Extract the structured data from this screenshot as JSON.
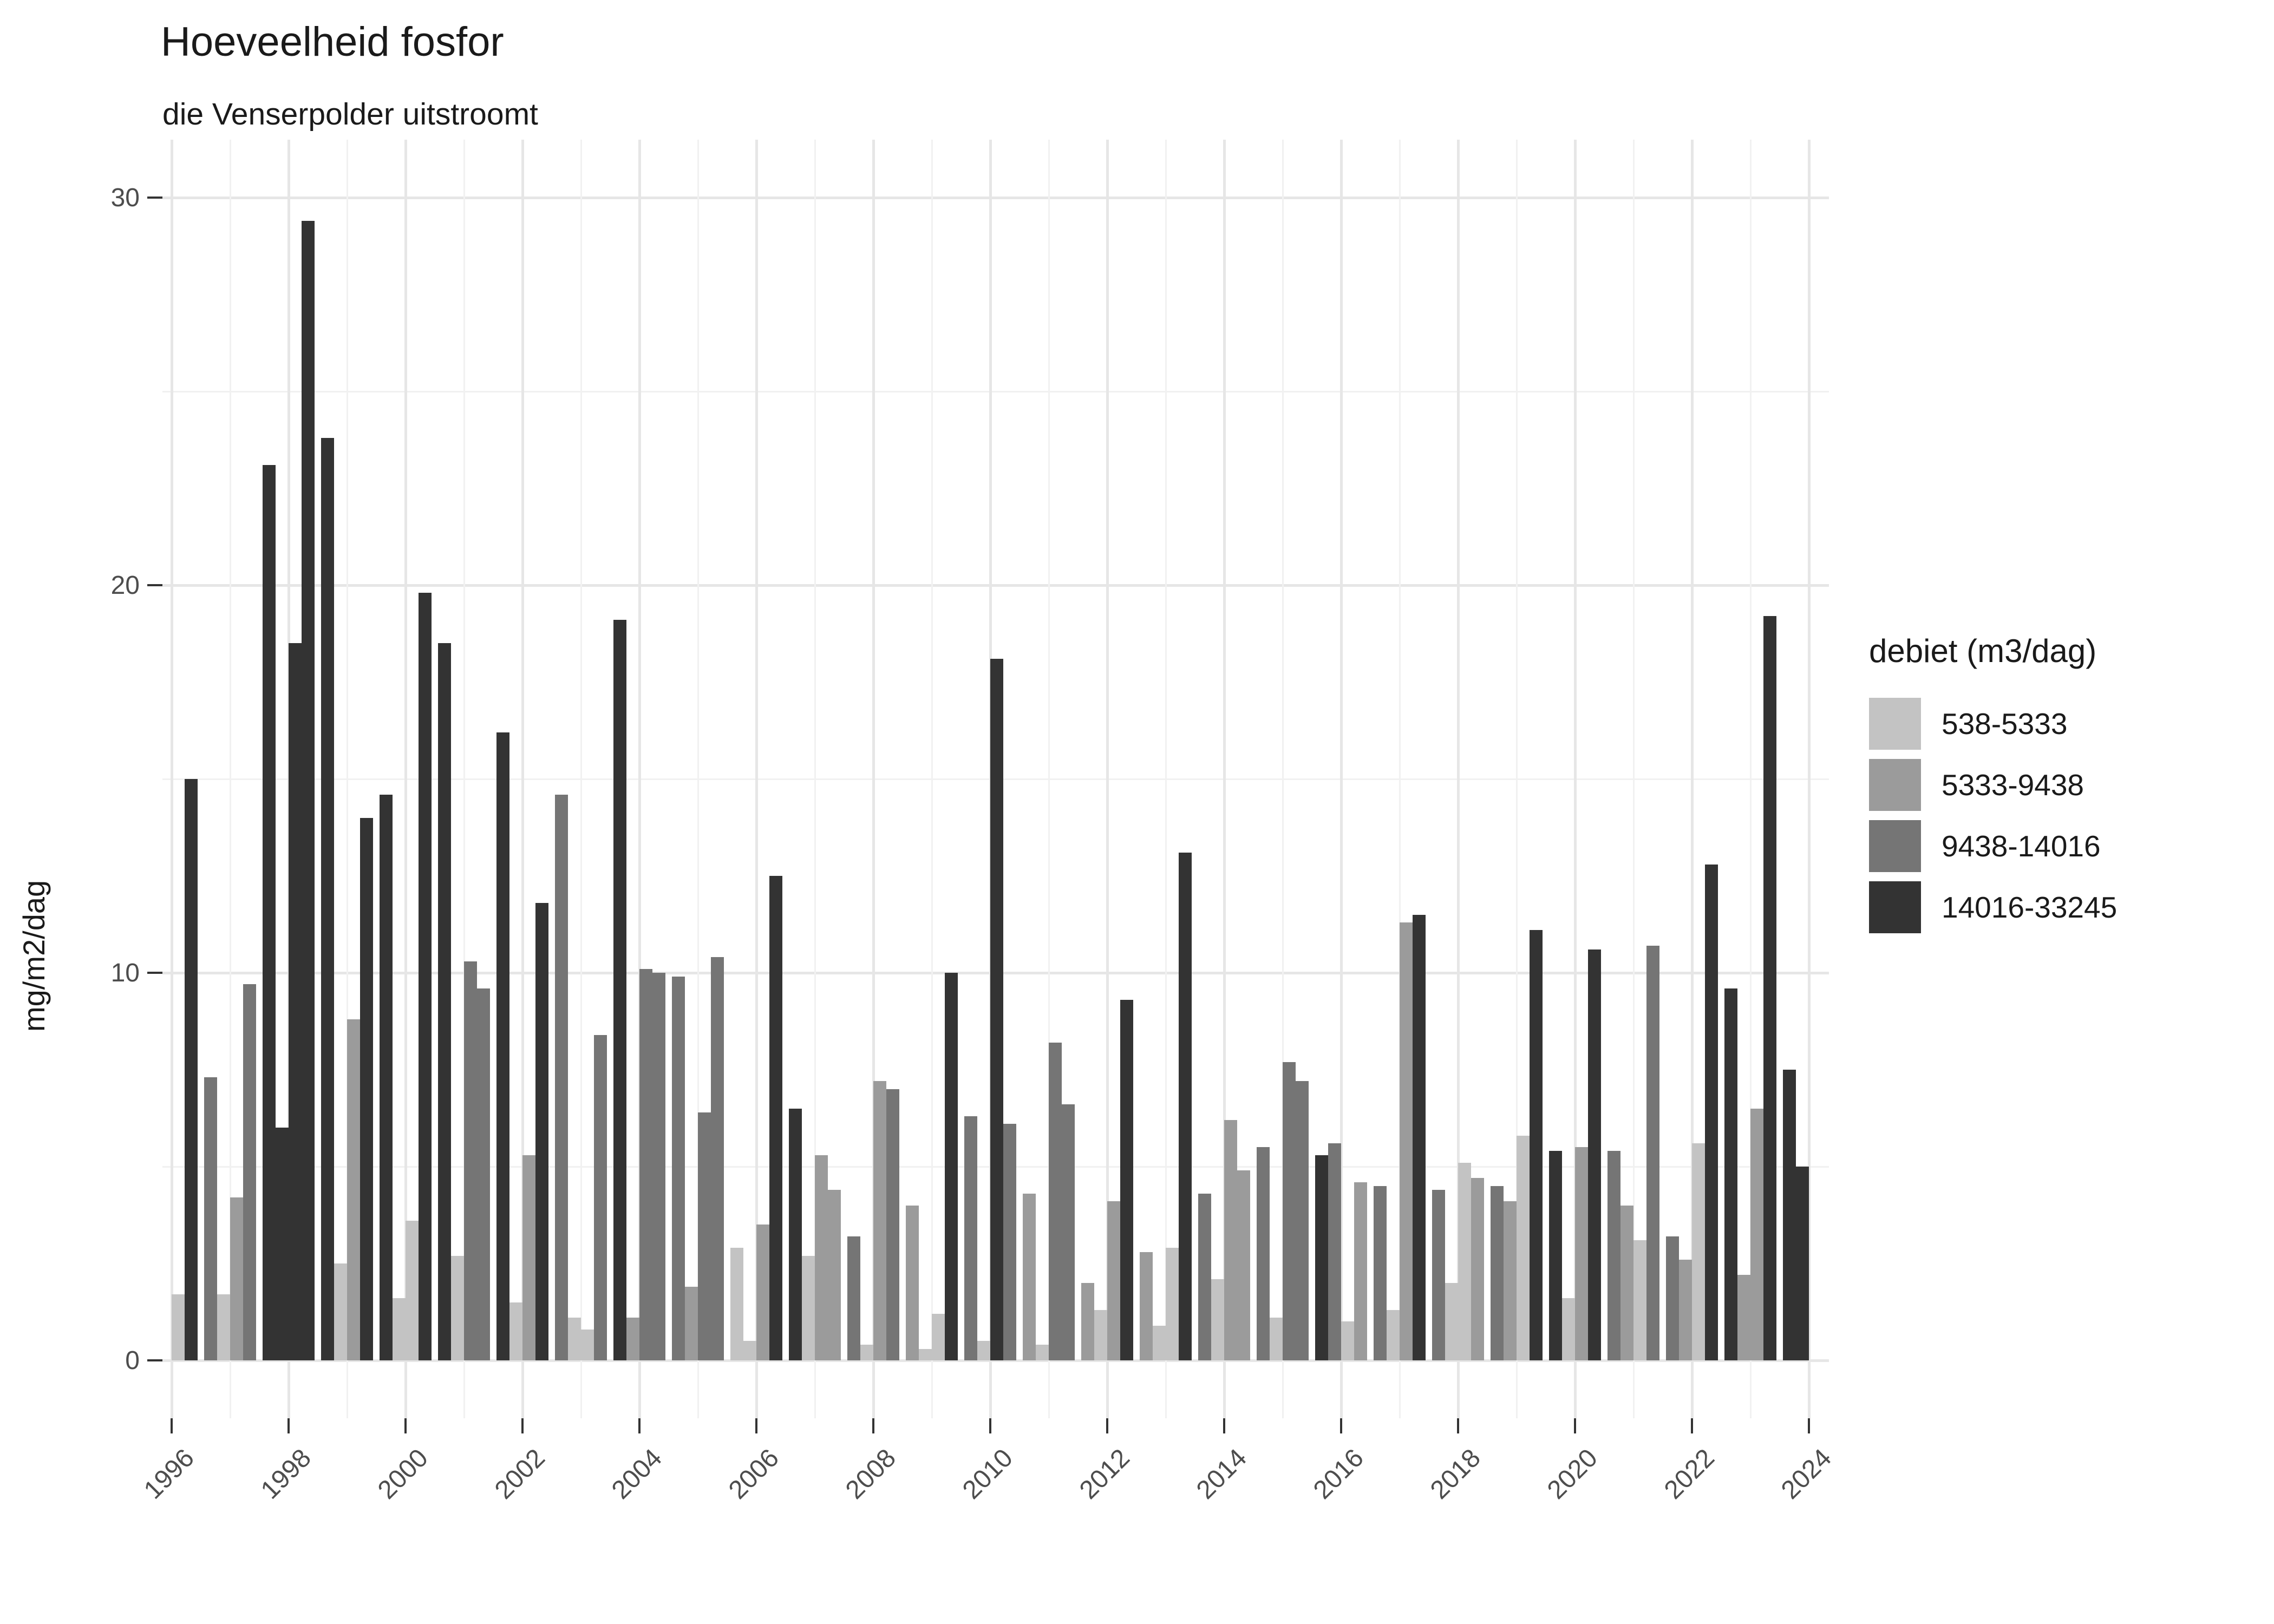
{
  "header": {
    "title": "Hoeveelheid fosfor",
    "subtitle": "die Venserpolder uitstroomt"
  },
  "chart_data": {
    "type": "bar",
    "title": "Hoeveelheid fosfor",
    "subtitle": "die Venserpolder uitstroomt",
    "xlabel": "",
    "ylabel": "mg/m2/dag",
    "ylim": [
      0,
      30
    ],
    "y_ticks": [
      0,
      10,
      20,
      30
    ],
    "y_minor_ticks": [
      5,
      15,
      25
    ],
    "x_tick_years": [
      1996,
      1998,
      2000,
      2002,
      2004,
      2006,
      2008,
      2010,
      2012,
      2014,
      2016,
      2018,
      2020,
      2022,
      2024
    ],
    "grid": "on",
    "legend_position": "right",
    "legend_title": "debiet (m3/dag)",
    "categories": [
      "538-5333",
      "5333-9438",
      "9438-14016",
      "14016-33245"
    ],
    "category_colors": [
      "#c3c3c3",
      "#9b9b9b",
      "#757575",
      "#333333"
    ],
    "bar_unit": "year-quarter",
    "bars": [
      [
        1996,
        3,
        1.7,
        0
      ],
      [
        1996,
        4,
        15.0,
        3
      ],
      [
        1997,
        1,
        7.3,
        2
      ],
      [
        1997,
        2,
        1.7,
        0
      ],
      [
        1997,
        3,
        4.2,
        1
      ],
      [
        1997,
        4,
        9.7,
        2
      ],
      [
        1998,
        1,
        23.1,
        3
      ],
      [
        1998,
        2,
        6.0,
        3
      ],
      [
        1998,
        3,
        18.5,
        3
      ],
      [
        1998,
        4,
        29.4,
        3
      ],
      [
        1999,
        1,
        23.8,
        3
      ],
      [
        1999,
        2,
        2.5,
        0
      ],
      [
        1999,
        3,
        8.8,
        1
      ],
      [
        1999,
        4,
        14.0,
        3
      ],
      [
        2000,
        1,
        14.6,
        3
      ],
      [
        2000,
        2,
        1.6,
        0
      ],
      [
        2000,
        3,
        3.6,
        0
      ],
      [
        2000,
        4,
        19.8,
        3
      ],
      [
        2001,
        1,
        18.5,
        3
      ],
      [
        2001,
        2,
        2.7,
        0
      ],
      [
        2001,
        3,
        10.3,
        2
      ],
      [
        2001,
        4,
        9.6,
        2
      ],
      [
        2002,
        1,
        16.2,
        3
      ],
      [
        2002,
        2,
        1.5,
        0
      ],
      [
        2002,
        3,
        5.3,
        1
      ],
      [
        2002,
        4,
        11.8,
        3
      ],
      [
        2003,
        1,
        14.6,
        2
      ],
      [
        2003,
        2,
        1.1,
        0
      ],
      [
        2003,
        3,
        0.8,
        0
      ],
      [
        2003,
        4,
        8.4,
        2
      ],
      [
        2004,
        1,
        19.1,
        3
      ],
      [
        2004,
        2,
        1.1,
        1
      ],
      [
        2004,
        3,
        10.1,
        2
      ],
      [
        2004,
        4,
        10.0,
        2
      ],
      [
        2005,
        1,
        9.9,
        2
      ],
      [
        2005,
        2,
        1.9,
        1
      ],
      [
        2005,
        3,
        6.4,
        2
      ],
      [
        2005,
        4,
        10.4,
        2
      ],
      [
        2006,
        1,
        2.9,
        0
      ],
      [
        2006,
        2,
        0.5,
        0
      ],
      [
        2006,
        3,
        3.5,
        1
      ],
      [
        2006,
        4,
        12.5,
        3
      ],
      [
        2007,
        1,
        6.5,
        3
      ],
      [
        2007,
        2,
        2.7,
        0
      ],
      [
        2007,
        3,
        5.3,
        1
      ],
      [
        2007,
        4,
        4.4,
        1
      ],
      [
        2008,
        1,
        3.2,
        2
      ],
      [
        2008,
        2,
        0.4,
        0
      ],
      [
        2008,
        3,
        7.2,
        1
      ],
      [
        2008,
        4,
        7.0,
        2
      ],
      [
        2009,
        1,
        4.0,
        1
      ],
      [
        2009,
        2,
        0.3,
        0
      ],
      [
        2009,
        3,
        1.2,
        0
      ],
      [
        2009,
        4,
        10.0,
        3
      ],
      [
        2010,
        1,
        6.3,
        2
      ],
      [
        2010,
        2,
        0.5,
        0
      ],
      [
        2010,
        3,
        18.1,
        3
      ],
      [
        2010,
        4,
        6.1,
        2
      ],
      [
        2011,
        1,
        4.3,
        1
      ],
      [
        2011,
        2,
        0.4,
        0
      ],
      [
        2011,
        3,
        8.2,
        2
      ],
      [
        2011,
        4,
        6.6,
        2
      ],
      [
        2012,
        1,
        2.0,
        1
      ],
      [
        2012,
        2,
        1.3,
        0
      ],
      [
        2012,
        3,
        4.1,
        1
      ],
      [
        2012,
        4,
        9.3,
        3
      ],
      [
        2013,
        1,
        2.8,
        1
      ],
      [
        2013,
        2,
        0.9,
        0
      ],
      [
        2013,
        3,
        2.9,
        0
      ],
      [
        2013,
        4,
        13.1,
        3
      ],
      [
        2014,
        1,
        4.3,
        2
      ],
      [
        2014,
        2,
        2.1,
        0
      ],
      [
        2014,
        3,
        6.2,
        1
      ],
      [
        2014,
        4,
        4.9,
        1
      ],
      [
        2015,
        1,
        5.5,
        2
      ],
      [
        2015,
        2,
        1.1,
        0
      ],
      [
        2015,
        3,
        7.7,
        2
      ],
      [
        2015,
        4,
        7.2,
        2
      ],
      [
        2016,
        1,
        5.3,
        3
      ],
      [
        2016,
        2,
        5.6,
        2
      ],
      [
        2016,
        3,
        1.0,
        0
      ],
      [
        2016,
        4,
        4.6,
        1
      ],
      [
        2017,
        1,
        4.5,
        2
      ],
      [
        2017,
        2,
        1.3,
        0
      ],
      [
        2017,
        3,
        11.3,
        1
      ],
      [
        2017,
        4,
        11.5,
        3
      ],
      [
        2018,
        1,
        4.4,
        2
      ],
      [
        2018,
        2,
        2.0,
        0
      ],
      [
        2018,
        3,
        5.1,
        0
      ],
      [
        2018,
        4,
        4.7,
        1
      ],
      [
        2019,
        1,
        4.5,
        2
      ],
      [
        2019,
        2,
        4.1,
        1
      ],
      [
        2019,
        3,
        5.8,
        0
      ],
      [
        2019,
        4,
        11.1,
        3
      ],
      [
        2020,
        1,
        5.4,
        3
      ],
      [
        2020,
        2,
        1.6,
        0
      ],
      [
        2020,
        3,
        5.5,
        1
      ],
      [
        2020,
        4,
        10.6,
        3
      ],
      [
        2021,
        1,
        5.4,
        2
      ],
      [
        2021,
        2,
        4.0,
        1
      ],
      [
        2021,
        3,
        3.1,
        0
      ],
      [
        2021,
        4,
        10.7,
        2
      ],
      [
        2022,
        1,
        3.2,
        2
      ],
      [
        2022,
        2,
        2.6,
        1
      ],
      [
        2022,
        3,
        5.6,
        0
      ],
      [
        2022,
        4,
        12.8,
        3
      ],
      [
        2023,
        1,
        9.6,
        3
      ],
      [
        2023,
        2,
        2.2,
        1
      ],
      [
        2023,
        3,
        6.5,
        1
      ],
      [
        2023,
        4,
        19.2,
        3
      ],
      [
        2024,
        1,
        7.5,
        3
      ],
      [
        2024,
        2,
        5.0,
        3
      ]
    ]
  }
}
